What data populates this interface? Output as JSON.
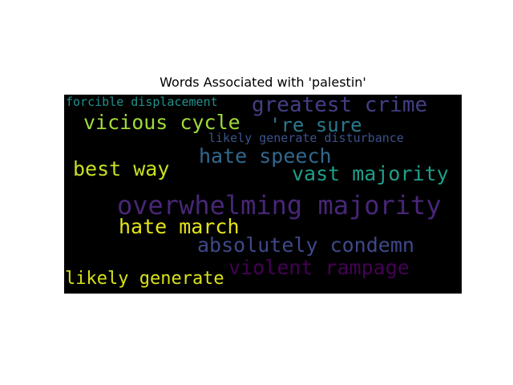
{
  "chart_data": {
    "type": "wordcloud",
    "title": "Words Associated with 'palestin'",
    "words": [
      {
        "text": "forcible displacement",
        "color": "#21918c"
      },
      {
        "text": "greatest crime",
        "color": "#433e85"
      },
      {
        "text": "vicious cycle",
        "color": "#a0da39"
      },
      {
        "text": "'re sure",
        "color": "#2a788e"
      },
      {
        "text": "likely generate disturbance",
        "color": "#3b528b"
      },
      {
        "text": "hate speech",
        "color": "#31688e"
      },
      {
        "text": "best way",
        "color": "#c8e020"
      },
      {
        "text": "vast majority",
        "color": "#1f9e89"
      },
      {
        "text": "overwhelming majority",
        "color": "#482677"
      },
      {
        "text": "hate march",
        "color": "#e5e419"
      },
      {
        "text": "absolutely condemn",
        "color": "#3e4989"
      },
      {
        "text": "violent rampage",
        "color": "#440154"
      },
      {
        "text": "likely generate",
        "color": "#d8e219"
      }
    ]
  }
}
